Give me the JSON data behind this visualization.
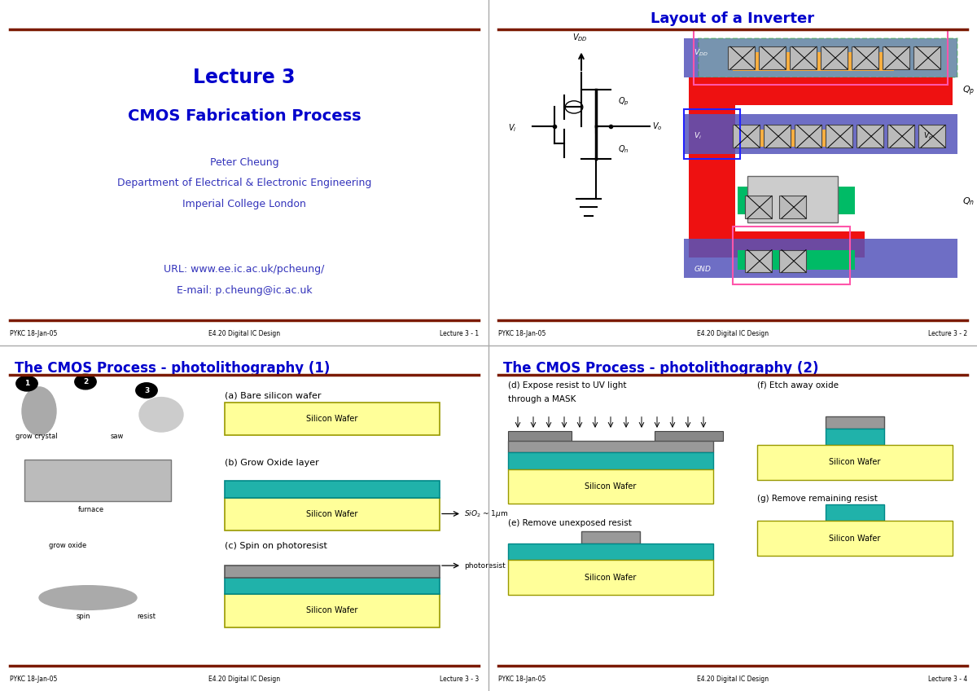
{
  "slide_bg": "#ffffff",
  "border_color": "#7B1A00",
  "title_color": "#0000CC",
  "body_color": "#3333BB",
  "footer_text_color": "#000000",
  "divider_color": "#aaaaaa",
  "slides": [
    {
      "slide_title": "Lecture 3",
      "slide_subtitle": "CMOS Fabrication Process",
      "author": "Peter Cheung",
      "dept": "Department of Electrical & Electronic Engineering",
      "college": "Imperial College London",
      "url": "URL: www.ee.ic.ac.uk/pcheung/",
      "email": "E-mail: p.cheung@ic.ac.uk",
      "footer_left": "PYKC 18-Jan-05",
      "footer_mid": "E4.20 Digital IC Design",
      "footer_right": "Lecture 3 - 1"
    },
    {
      "title": "Layout of a Inverter",
      "footer_left": "PYKC 18-Jan-05",
      "footer_mid": "E4.20 Digital IC Design",
      "footer_right": "Lecture 3 - 2"
    },
    {
      "title": "The CMOS Process - photolithography (1)",
      "footer_left": "PYKC 18-Jan-05",
      "footer_mid": "E4.20 Digital IC Design",
      "footer_right": "Lecture 3 - 3"
    },
    {
      "title": "The CMOS Process - photolithography (2)",
      "footer_left": "PYKC 18-Jan-05",
      "footer_mid": "E4.20 Digital IC Design",
      "footer_right": "Lecture 3 - 4"
    }
  ],
  "silicon_wafer_color": "#FFFF99",
  "silicon_wafer_edge": "#999900",
  "oxide_color": "#20B2AA",
  "oxide_edge": "#008888",
  "resist_color": "#999999",
  "resist_edge": "#555555"
}
